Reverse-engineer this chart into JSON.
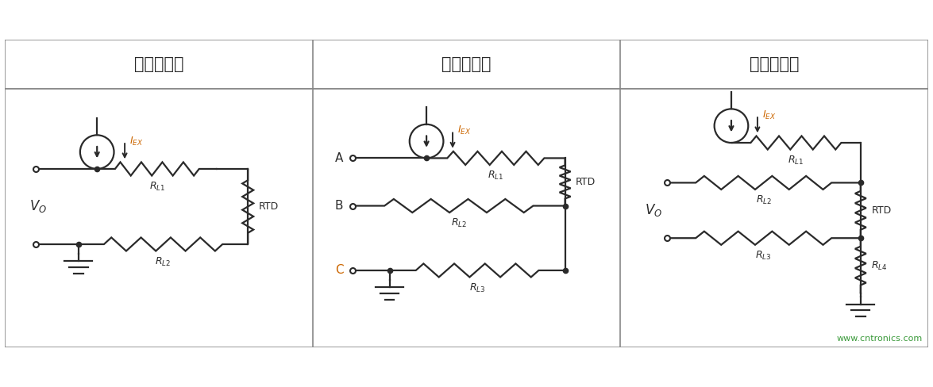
{
  "title1": "两线制接法",
  "title2": "三线制接法",
  "title3": "四线制接法",
  "line_color": "#2a2a2a",
  "text_color": "#2a2a2a",
  "orange_color": "#cc6600",
  "bg_color": "#ffffff",
  "border_color": "#888888",
  "watermark": "www.cntronics.com",
  "watermark_color": "#3a9a3a"
}
